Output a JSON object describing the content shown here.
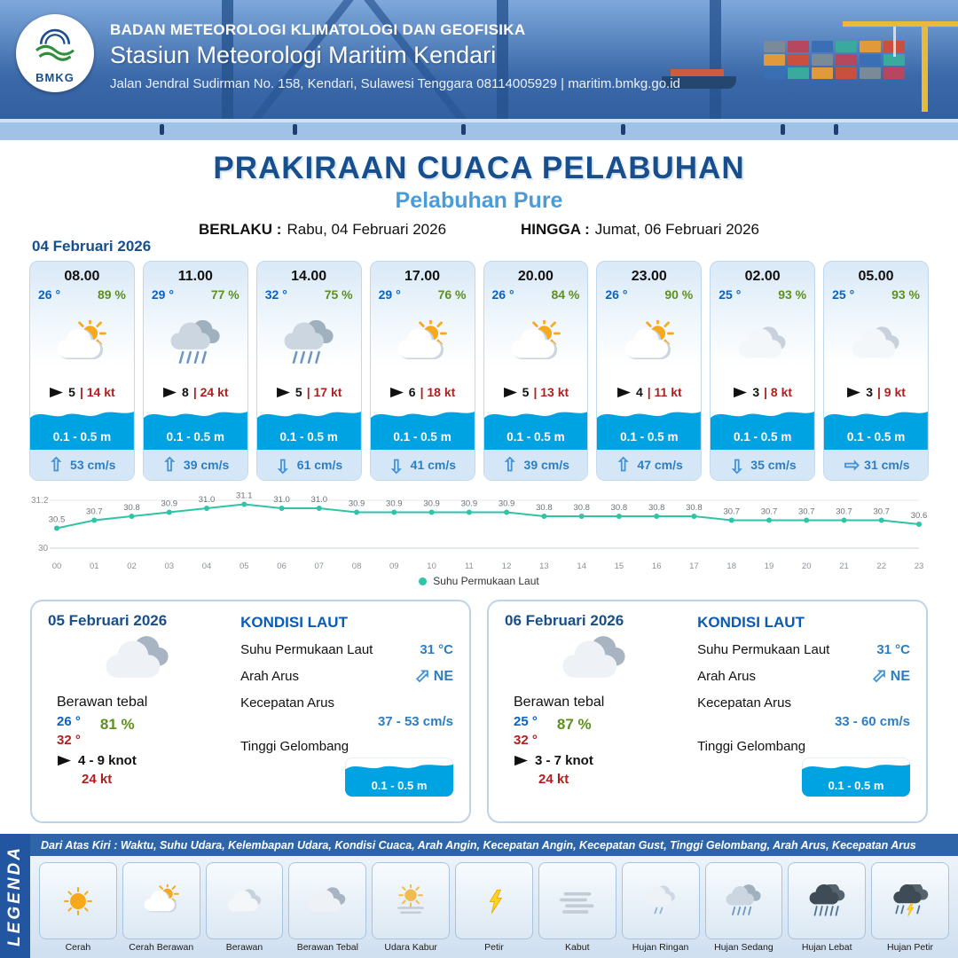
{
  "header": {
    "logo_label": "BMKG",
    "org": "BADAN METEOROLOGI KLIMATOLOGI DAN GEOFISIKA",
    "station": "Stasiun Meteorologi Maritim Kendari",
    "address": "Jalan Jendral Sudirman No. 158, Kendari, Sulawesi Tenggara  08114005929 | maritim.bmkg.go.id"
  },
  "title": {
    "main": "PRAKIRAAN CUACA PELABUHAN",
    "sub": "Pelabuhan Pure",
    "valid_label": "BERLAKU :",
    "valid_value": "Rabu, 04 Februari 2026",
    "until_label": "HINGGA :",
    "until_value": "Jumat, 06 Februari 2026"
  },
  "forecast_date": "04 Februari 2026",
  "cards": [
    {
      "time": "08.00",
      "temp": "26 °",
      "hum": "89 %",
      "icon": "cerah-berawan",
      "wind": "5",
      "gust": "| 14 kt",
      "wave": "0.1 - 0.5 m",
      "dir": "up",
      "cur": "53 cm/s"
    },
    {
      "time": "11.00",
      "temp": "29 °",
      "hum": "77 %",
      "icon": "hujan-sedang",
      "wind": "8",
      "gust": "| 24 kt",
      "wave": "0.1 - 0.5 m",
      "dir": "up",
      "cur": "39 cm/s"
    },
    {
      "time": "14.00",
      "temp": "32 °",
      "hum": "75 %",
      "icon": "hujan-sedang",
      "wind": "5",
      "gust": "| 17 kt",
      "wave": "0.1 - 0.5 m",
      "dir": "down",
      "cur": "61 cm/s"
    },
    {
      "time": "17.00",
      "temp": "29 °",
      "hum": "76 %",
      "icon": "cerah-berawan",
      "wind": "6",
      "gust": "| 18 kt",
      "wave": "0.1 - 0.5 m",
      "dir": "down",
      "cur": "41 cm/s"
    },
    {
      "time": "20.00",
      "temp": "26 °",
      "hum": "84 %",
      "icon": "cerah-berawan",
      "wind": "5",
      "gust": "| 13 kt",
      "wave": "0.1 - 0.5 m",
      "dir": "up",
      "cur": "39 cm/s"
    },
    {
      "time": "23.00",
      "temp": "26 °",
      "hum": "90 %",
      "icon": "cerah-berawan",
      "wind": "4",
      "gust": "| 11 kt",
      "wave": "0.1 - 0.5 m",
      "dir": "up",
      "cur": "47 cm/s"
    },
    {
      "time": "02.00",
      "temp": "25 °",
      "hum": "93 %",
      "icon": "berawan",
      "wind": "3",
      "gust": "| 8 kt",
      "wave": "0.1 - 0.5 m",
      "dir": "down",
      "cur": "35 cm/s"
    },
    {
      "time": "05.00",
      "temp": "25 °",
      "hum": "93 %",
      "icon": "berawan",
      "wind": "3",
      "gust": "| 9 kt",
      "wave": "0.1 - 0.5 m",
      "dir": "right",
      "cur": "31 cm/s"
    }
  ],
  "chart_data": {
    "type": "line",
    "x": [
      "00",
      "01",
      "02",
      "03",
      "04",
      "05",
      "06",
      "07",
      "08",
      "09",
      "10",
      "11",
      "12",
      "13",
      "14",
      "15",
      "16",
      "17",
      "18",
      "19",
      "20",
      "21",
      "22",
      "23"
    ],
    "values": [
      30.5,
      30.7,
      30.8,
      30.9,
      31.0,
      31.1,
      31.0,
      31.0,
      30.9,
      30.9,
      30.9,
      30.9,
      30.9,
      30.8,
      30.8,
      30.8,
      30.8,
      30.8,
      30.7,
      30.7,
      30.7,
      30.7,
      30.7,
      30.6
    ],
    "ylim": [
      30,
      31.2
    ],
    "legend": "Suhu Permukaan Laut",
    "color": "#2ec4a5",
    "grid": true,
    "legend_position": "bottom"
  },
  "days": [
    {
      "date": "05 Februari 2026",
      "icon": "berawan-tebal",
      "condition": "Berawan tebal",
      "temp_min": "26 °",
      "temp_max": "32 °",
      "hum": "81 %",
      "wind": "4 - 9 knot",
      "gust": "24 kt",
      "sea_title": "KONDISI LAUT",
      "sst_label": "Suhu Permukaan Laut",
      "sst": "31 °C",
      "dir_label": "Arah Arus",
      "dir": "NE",
      "cur_label": "Kecepatan Arus",
      "cur": "37 - 53 cm/s",
      "wave_label": "Tinggi Gelombang",
      "wave": "0.1 - 0.5 m"
    },
    {
      "date": "06 Februari 2026",
      "icon": "berawan-tebal",
      "condition": "Berawan tebal",
      "temp_min": "25 °",
      "temp_max": "32 °",
      "hum": "87 %",
      "wind": "3 - 7 knot",
      "gust": "24 kt",
      "sea_title": "KONDISI LAUT",
      "sst_label": "Suhu Permukaan Laut",
      "sst": "31 °C",
      "dir_label": "Arah Arus",
      "dir": "NE",
      "cur_label": "Kecepatan Arus",
      "cur": "33 - 60 cm/s",
      "wave_label": "Tinggi Gelombang",
      "wave": "0.1 - 0.5 m"
    }
  ],
  "legend": {
    "sidebar": "LEGENDA",
    "note": "Dari Atas Kiri : Waktu, Suhu Udara, Kelembapan Udara, Kondisi Cuaca, Arah Angin, Kecepatan Angin, Kecepatan Gust, Tinggi Gelombang, Arah Arus, Kecepatan Arus",
    "items": [
      {
        "label": "Cerah",
        "icon": "cerah"
      },
      {
        "label": "Cerah Berawan",
        "icon": "cerah-berawan"
      },
      {
        "label": "Berawan",
        "icon": "berawan"
      },
      {
        "label": "Berawan Tebal",
        "icon": "berawan-tebal"
      },
      {
        "label": "Udara Kabur",
        "icon": "udara-kabur"
      },
      {
        "label": "Petir",
        "icon": "petir"
      },
      {
        "label": "Kabut",
        "icon": "kabut"
      },
      {
        "label": "Hujan Ringan",
        "icon": "hujan-ringan"
      },
      {
        "label": "Hujan Sedang",
        "icon": "hujan-sedang"
      },
      {
        "label": "Hujan Lebat",
        "icon": "hujan-lebat"
      },
      {
        "label": "Hujan Petir",
        "icon": "hujan-petir"
      }
    ]
  }
}
